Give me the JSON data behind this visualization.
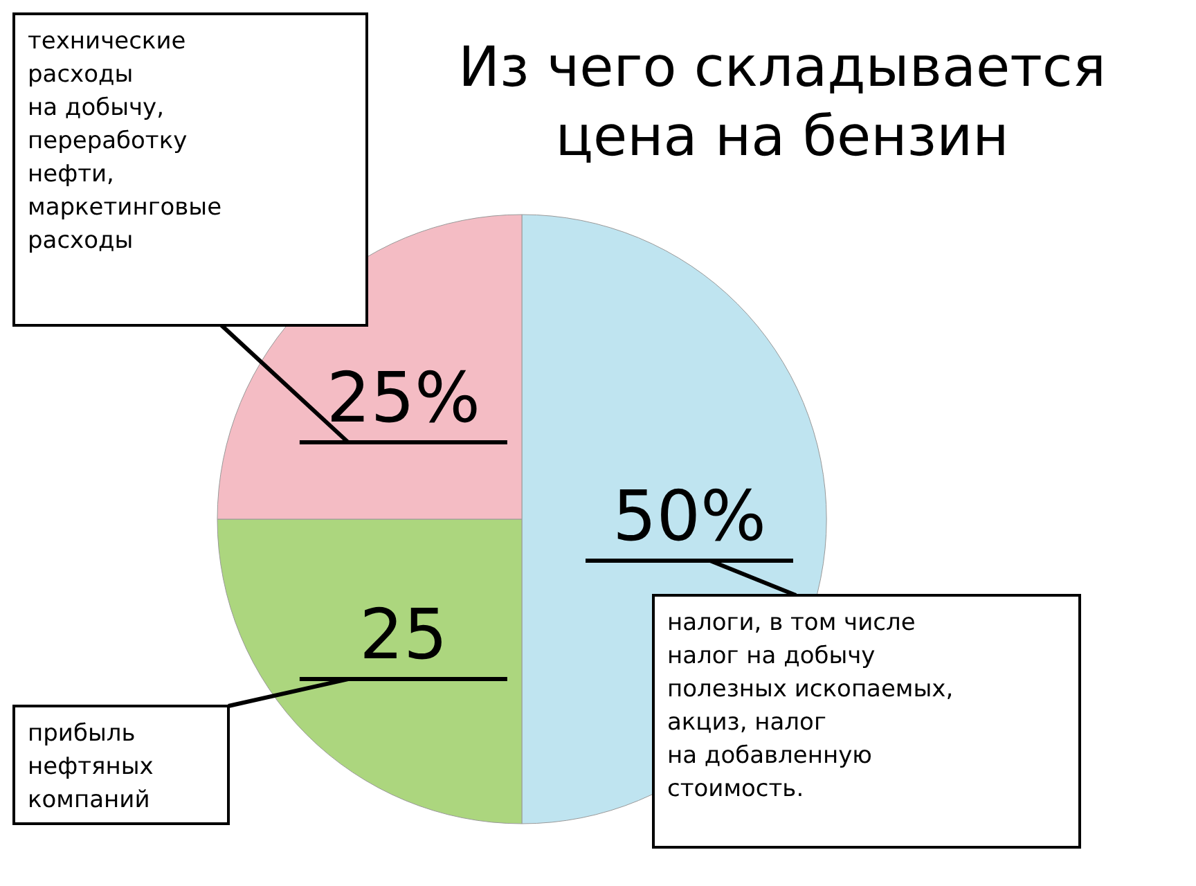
{
  "chart_data": {
    "type": "pie",
    "title": "Из чего складывается\nцена на бензин",
    "categories": [
      "налоги, в том числе\nналог на добычу\nполезных ископаемых,\nакциз, налог\nна добавленную\nстоимость.",
      "прибыль\nнефтяных\nкомпаний",
      "технические\nрасходы\nна добычу,\nпереработку\nнефти,\nмаркетинговые\nрасходы"
    ],
    "values": [
      50,
      25,
      25
    ],
    "colors": [
      "#bfe4f0",
      "#acd67e",
      "#f4bcc4"
    ],
    "value_labels": [
      "50%",
      "25",
      "25%"
    ]
  }
}
